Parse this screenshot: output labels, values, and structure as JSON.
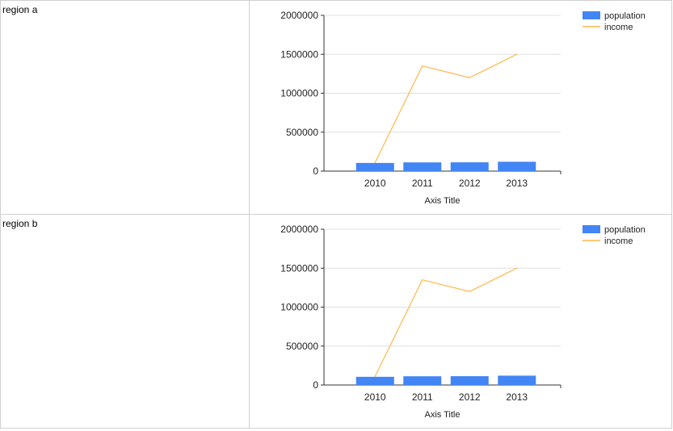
{
  "rows": [
    {
      "label": "region a"
    },
    {
      "label": "region b"
    }
  ],
  "colors": {
    "population": "#4285f4",
    "income": "#ffb74d",
    "grid": "#e0e0e0",
    "axis": "#333333"
  },
  "chart_data": [
    {
      "type": "bar",
      "categories": [
        "2010",
        "2011",
        "2012",
        "2013"
      ],
      "series": [
        {
          "name": "population",
          "type": "bar",
          "values": [
            105000,
            112000,
            113000,
            120000
          ]
        },
        {
          "name": "income",
          "type": "line",
          "values": [
            110000,
            1350000,
            1200000,
            1500000
          ]
        }
      ],
      "xlabel": "Axis Title",
      "ylabel": "",
      "ylim": [
        0,
        2000000
      ],
      "yticks": [
        "0",
        "500000",
        "1000000",
        "1500000",
        "2000000"
      ],
      "grid": true,
      "legend_position": "top-right"
    },
    {
      "type": "bar",
      "categories": [
        "2010",
        "2011",
        "2012",
        "2013"
      ],
      "series": [
        {
          "name": "population",
          "type": "bar",
          "values": [
            105000,
            112000,
            113000,
            120000
          ]
        },
        {
          "name": "income",
          "type": "line",
          "values": [
            110000,
            1350000,
            1200000,
            1500000
          ]
        }
      ],
      "xlabel": "Axis Title",
      "ylabel": "",
      "ylim": [
        0,
        2000000
      ],
      "yticks": [
        "0",
        "500000",
        "1000000",
        "1500000",
        "2000000"
      ],
      "grid": true,
      "legend_position": "top-right"
    }
  ]
}
